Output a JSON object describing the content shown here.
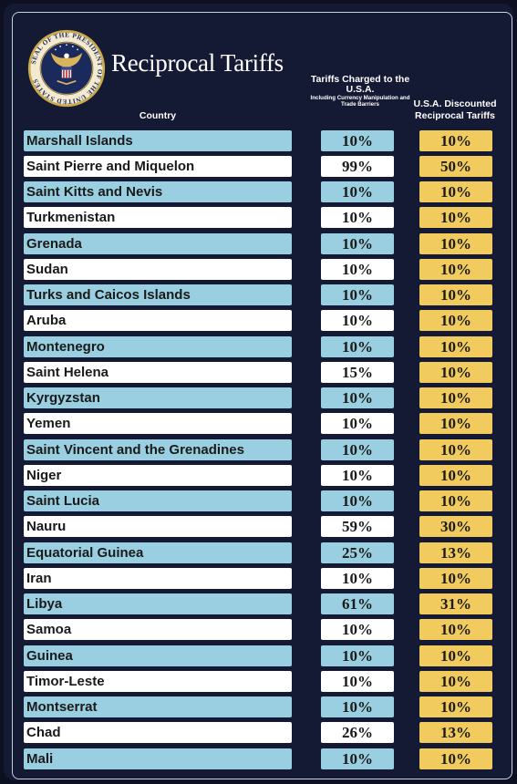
{
  "title": "Reciprocal Tariffs",
  "seal": {
    "outer_text": "SEAL OF THE PRESIDENT OF THE UNITED STATES",
    "icon": "presidential-seal-eagle",
    "colors": {
      "ring": "#c9a94a",
      "field": "#1b2a5c"
    }
  },
  "headers": {
    "country": "Country",
    "charged_main": "Tariffs Charged to the U.S.A.",
    "charged_sub": "Including Currency Manipulation and Trade Barriers",
    "discount": "U.S.A. Discounted Reciprocal Tariffs"
  },
  "colors": {
    "background": "#141a33",
    "row_blue": "#99cfe0",
    "row_white": "#ffffff",
    "discount_gold": "#f2cb5e"
  },
  "rows": [
    {
      "country": "Marshall Islands",
      "charged": "10%",
      "discount": "10%"
    },
    {
      "country": "Saint Pierre and Miquelon",
      "charged": "99%",
      "discount": "50%"
    },
    {
      "country": "Saint Kitts and Nevis",
      "charged": "10%",
      "discount": "10%"
    },
    {
      "country": "Turkmenistan",
      "charged": "10%",
      "discount": "10%"
    },
    {
      "country": "Grenada",
      "charged": "10%",
      "discount": "10%"
    },
    {
      "country": "Sudan",
      "charged": "10%",
      "discount": "10%"
    },
    {
      "country": "Turks and Caicos Islands",
      "charged": "10%",
      "discount": "10%"
    },
    {
      "country": "Aruba",
      "charged": "10%",
      "discount": "10%"
    },
    {
      "country": "Montenegro",
      "charged": "10%",
      "discount": "10%"
    },
    {
      "country": "Saint Helena",
      "charged": "15%",
      "discount": "10%"
    },
    {
      "country": "Kyrgyzstan",
      "charged": "10%",
      "discount": "10%"
    },
    {
      "country": "Yemen",
      "charged": "10%",
      "discount": "10%"
    },
    {
      "country": "Saint Vincent and the Grenadines",
      "charged": "10%",
      "discount": "10%"
    },
    {
      "country": "Niger",
      "charged": "10%",
      "discount": "10%"
    },
    {
      "country": "Saint Lucia",
      "charged": "10%",
      "discount": "10%"
    },
    {
      "country": "Nauru",
      "charged": "59%",
      "discount": "30%"
    },
    {
      "country": "Equatorial Guinea",
      "charged": "25%",
      "discount": "13%"
    },
    {
      "country": "Iran",
      "charged": "10%",
      "discount": "10%"
    },
    {
      "country": "Libya",
      "charged": "61%",
      "discount": "31%"
    },
    {
      "country": "Samoa",
      "charged": "10%",
      "discount": "10%"
    },
    {
      "country": "Guinea",
      "charged": "10%",
      "discount": "10%"
    },
    {
      "country": "Timor-Leste",
      "charged": "10%",
      "discount": "10%"
    },
    {
      "country": "Montserrat",
      "charged": "10%",
      "discount": "10%"
    },
    {
      "country": "Chad",
      "charged": "26%",
      "discount": "13%"
    },
    {
      "country": "Mali",
      "charged": "10%",
      "discount": "10%"
    }
  ]
}
